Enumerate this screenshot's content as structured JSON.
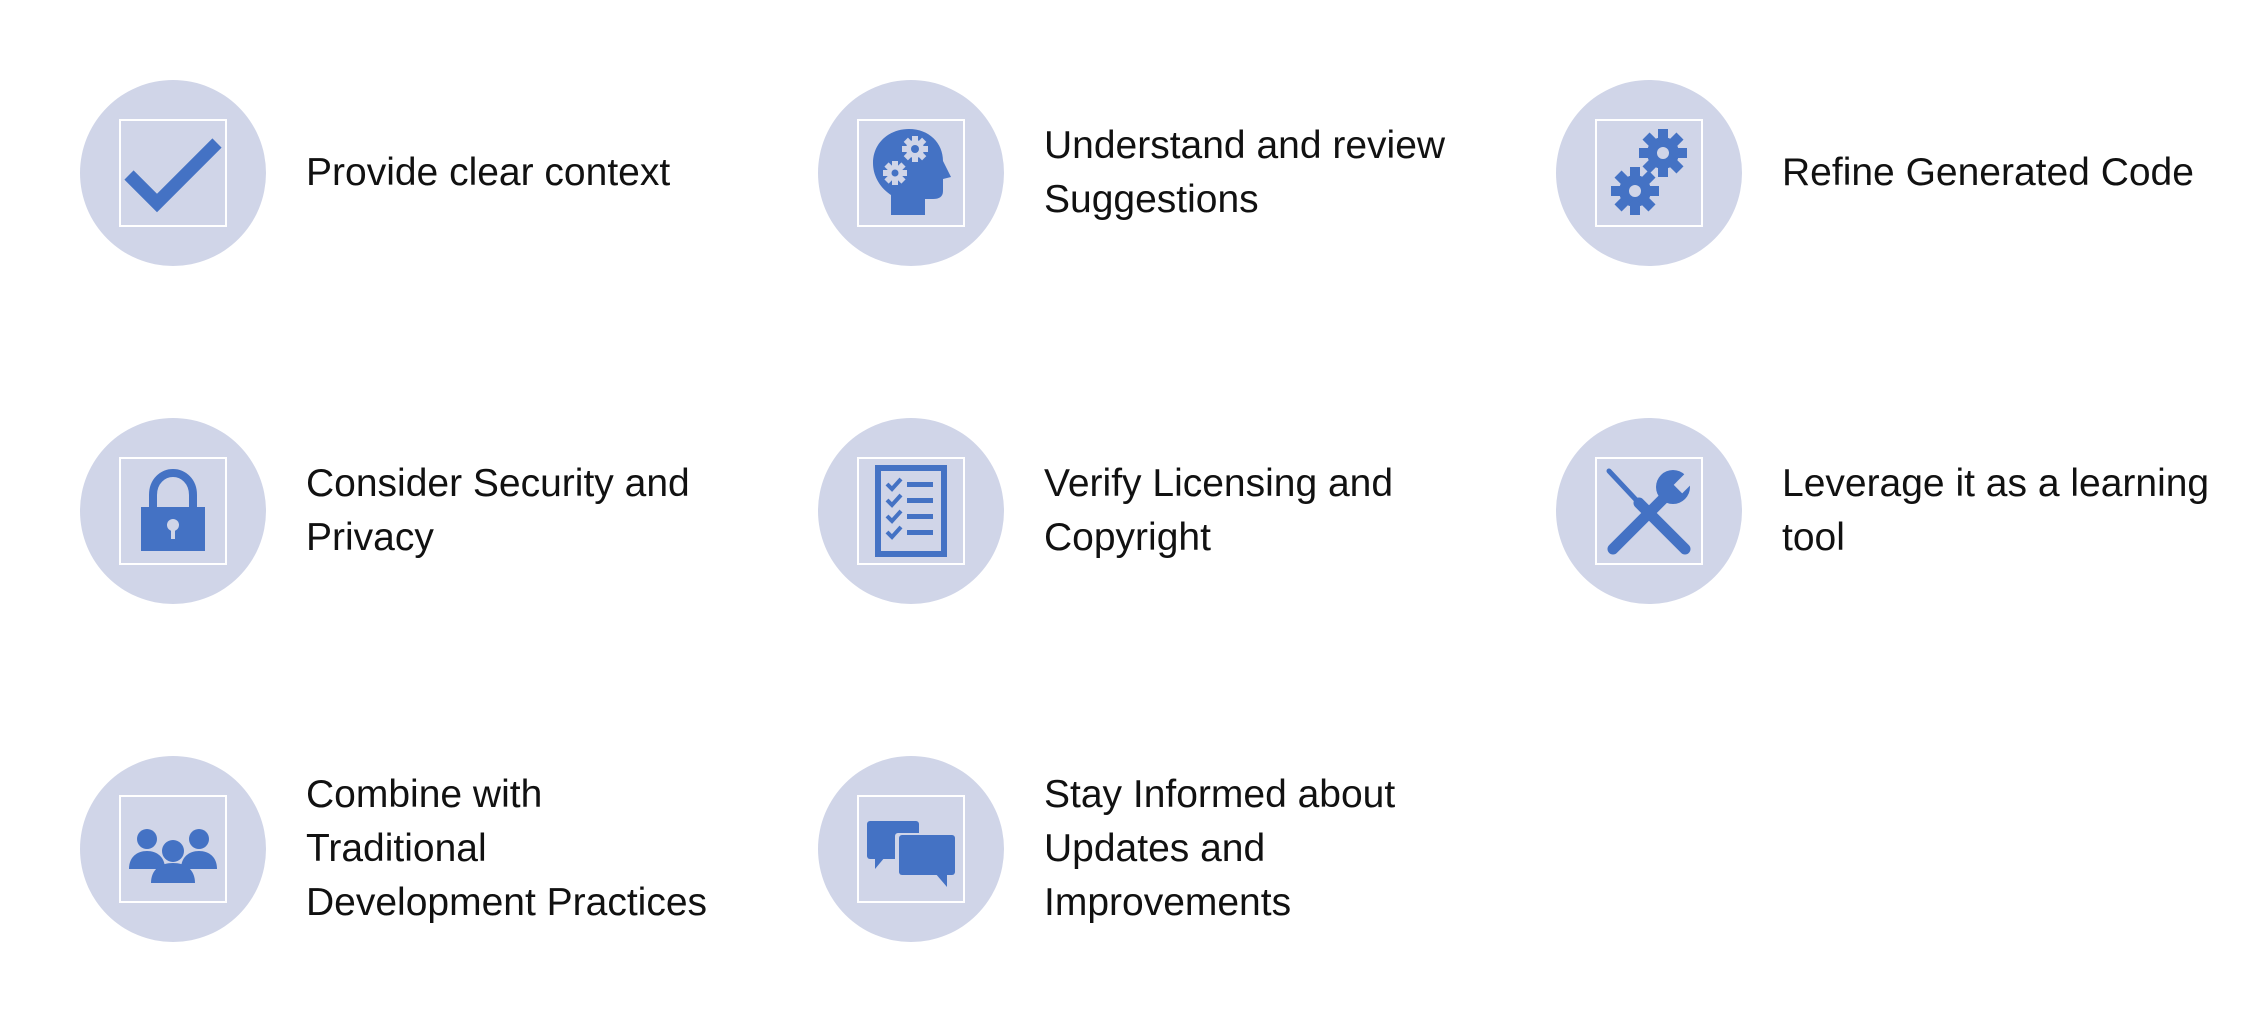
{
  "colors": {
    "circle": "#D0D5E8",
    "icon": "#4472C4",
    "frame": "#FFFFFF",
    "text": "#111111"
  },
  "items": [
    {
      "label": "Provide clear context",
      "icon": "checkmark-icon"
    },
    {
      "label": "Understand and review\nSuggestions",
      "icon": "head-gears-icon"
    },
    {
      "label": "Refine Generated Code",
      "icon": "gears-icon"
    },
    {
      "label": "Consider Security and\nPrivacy",
      "icon": "lock-icon"
    },
    {
      "label": "Verify Licensing and\nCopyright",
      "icon": "checklist-icon"
    },
    {
      "label": "Leverage it as a learning\ntool",
      "icon": "tools-icon"
    },
    {
      "label": "Combine with\nTraditional\nDevelopment Practices",
      "icon": "people-icon"
    },
    {
      "label": "Stay Informed about\nUpdates and\nImprovements",
      "icon": "chat-bubbles-icon"
    }
  ]
}
